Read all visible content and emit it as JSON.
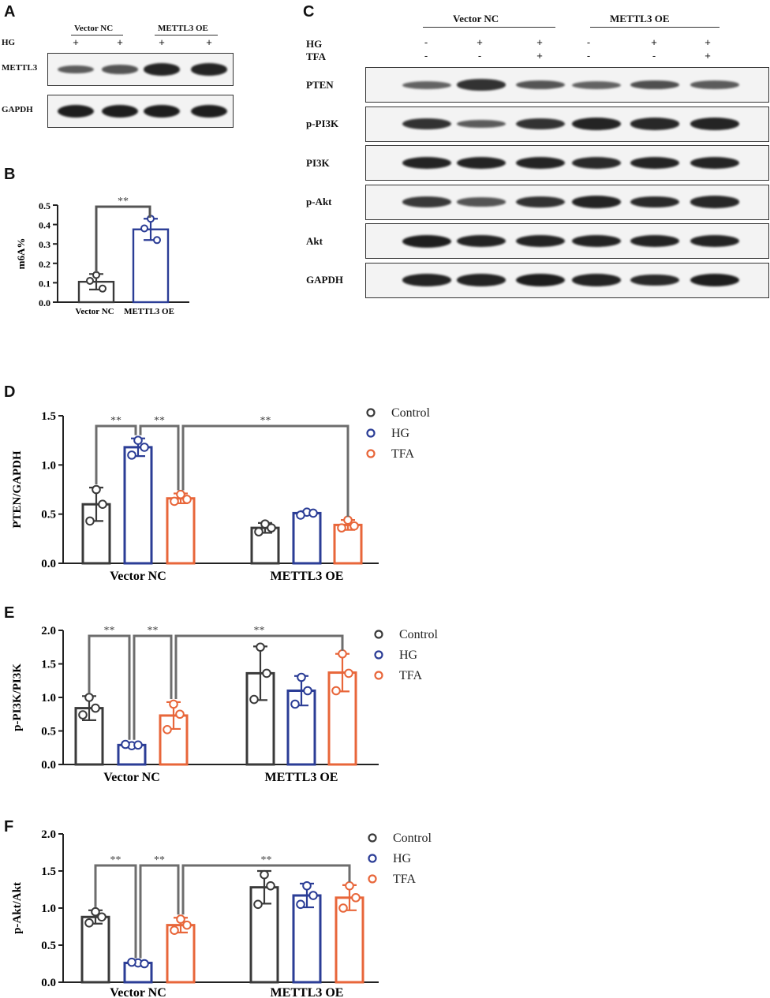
{
  "panels": {
    "A": "A",
    "B": "B",
    "C": "C",
    "D": "D",
    "E": "E",
    "F": "F"
  },
  "panel_a": {
    "groups": [
      "Vector NC",
      "METTL3 OE"
    ],
    "row_label_hg": "HG",
    "hg_signs": [
      "+",
      "+",
      "+",
      "+"
    ],
    "blots": [
      {
        "label": "METTL3",
        "intensity": [
          0.55,
          0.6,
          0.95,
          0.95
        ]
      },
      {
        "label": "GAPDH",
        "intensity": [
          1,
          1,
          1,
          1
        ]
      }
    ]
  },
  "panel_c": {
    "groups": [
      "Vector NC",
      "METTL3 OE"
    ],
    "row_labels": [
      "HG",
      "TFA"
    ],
    "hg_signs": [
      "-",
      "+",
      "+",
      "-",
      "+",
      "+"
    ],
    "tfa_signs": [
      "-",
      "-",
      "+",
      "-",
      "-",
      "+"
    ],
    "blots": [
      {
        "label": "PTEN",
        "intensity": [
          0.5,
          0.85,
          0.6,
          0.5,
          0.65,
          0.55
        ]
      },
      {
        "label": "p-PI3K",
        "intensity": [
          0.85,
          0.55,
          0.85,
          0.95,
          0.92,
          0.95
        ]
      },
      {
        "label": "PI3K",
        "intensity": [
          0.95,
          0.95,
          0.95,
          0.9,
          0.95,
          0.95
        ]
      },
      {
        "label": "p-Akt",
        "intensity": [
          0.8,
          0.6,
          0.85,
          0.95,
          0.9,
          0.92
        ]
      },
      {
        "label": "Akt",
        "intensity": [
          1,
          0.95,
          0.95,
          0.95,
          0.95,
          0.95
        ]
      },
      {
        "label": "GAPDH",
        "intensity": [
          0.95,
          0.95,
          1,
          0.95,
          0.9,
          1
        ]
      }
    ]
  },
  "chart_data": [
    {
      "panel": "B",
      "type": "bar",
      "categories": [
        "Vector NC",
        "METTL3 OE"
      ],
      "values": [
        0.105,
        0.375
      ],
      "errors": [
        0.04,
        0.055
      ],
      "points": [
        [
          0.14,
          0.11,
          0.07
        ],
        [
          0.43,
          0.38,
          0.32
        ]
      ],
      "colors": [
        "#3a3a3a",
        "#2b3d96"
      ],
      "ylabel": "m6A%",
      "ylim": [
        0,
        0.5
      ],
      "yticks": [
        "0.0",
        "0.1",
        "0.2",
        "0.3",
        "0.4",
        "0.5"
      ],
      "significance": [
        {
          "from": 0,
          "to": 1,
          "label": "**"
        }
      ]
    },
    {
      "panel": "D",
      "type": "bar",
      "groups": [
        "Vector NC",
        "METTL3 OE"
      ],
      "series": [
        {
          "name": "Control",
          "values": [
            0.6,
            0.36
          ],
          "errors": [
            0.17,
            0.05
          ],
          "points": [
            [
              0.75,
              0.43,
              0.6
            ],
            [
              0.4,
              0.32,
              0.36
            ]
          ]
        },
        {
          "name": "HG",
          "values": [
            1.18,
            0.51
          ],
          "errors": [
            0.09,
            0.02
          ],
          "points": [
            [
              1.25,
              1.1,
              1.18
            ],
            [
              0.52,
              0.49,
              0.51
            ]
          ]
        },
        {
          "name": "TFA",
          "values": [
            0.66,
            0.39
          ],
          "errors": [
            0.05,
            0.05
          ],
          "points": [
            [
              0.7,
              0.63,
              0.65
            ],
            [
              0.44,
              0.36,
              0.38
            ]
          ]
        }
      ],
      "colors": [
        "#3a3a3a",
        "#2b3d96",
        "#e8663a"
      ],
      "ylabel": "PTEN/GAPDH",
      "ylim": [
        0,
        1.5
      ],
      "yticks": [
        "0.0",
        "0.5",
        "1.0",
        "1.5"
      ],
      "legend": [
        "Control",
        "HG",
        "TFA"
      ],
      "significance": [
        {
          "label": "**"
        },
        {
          "label": "**"
        },
        {
          "label": "**"
        }
      ]
    },
    {
      "panel": "E",
      "type": "bar",
      "groups": [
        "Vector NC",
        "METTL3 OE"
      ],
      "series": [
        {
          "name": "Control",
          "values": [
            0.84,
            1.36
          ],
          "errors": [
            0.18,
            0.4
          ],
          "points": [
            [
              1.0,
              0.74,
              0.84
            ],
            [
              1.75,
              0.97,
              1.36
            ]
          ]
        },
        {
          "name": "HG",
          "values": [
            0.29,
            1.1
          ],
          "errors": [
            0.03,
            0.22
          ],
          "points": [
            [
              0.28,
              0.3,
              0.29
            ],
            [
              1.3,
              0.9,
              1.1
            ]
          ]
        },
        {
          "name": "TFA",
          "values": [
            0.73,
            1.37
          ],
          "errors": [
            0.2,
            0.28
          ],
          "points": [
            [
              0.9,
              0.52,
              0.75
            ],
            [
              1.65,
              1.1,
              1.36
            ]
          ]
        }
      ],
      "colors": [
        "#3a3a3a",
        "#2b3d96",
        "#e8663a"
      ],
      "ylabel": "p-PI3K/PI3K",
      "ylim": [
        0,
        2.0
      ],
      "yticks": [
        "0.0",
        "0.5",
        "1.0",
        "1.5",
        "2.0"
      ],
      "legend": [
        "Control",
        "HG",
        "TFA"
      ],
      "significance": [
        {
          "label": "**"
        },
        {
          "label": "**"
        },
        {
          "label": "**"
        }
      ]
    },
    {
      "panel": "F",
      "type": "bar",
      "groups": [
        "Vector NC",
        "METTL3 OE"
      ],
      "series": [
        {
          "name": "Control",
          "values": [
            0.88,
            1.28
          ],
          "errors": [
            0.09,
            0.22
          ],
          "points": [
            [
              0.95,
              0.8,
              0.88
            ],
            [
              1.45,
              1.05,
              1.3
            ]
          ]
        },
        {
          "name": "HG",
          "values": [
            0.26,
            1.17
          ],
          "errors": [
            0.02,
            0.16
          ],
          "points": [
            [
              0.26,
              0.27,
              0.25
            ],
            [
              1.3,
              1.05,
              1.17
            ]
          ]
        },
        {
          "name": "TFA",
          "values": [
            0.77,
            1.14
          ],
          "errors": [
            0.1,
            0.17
          ],
          "points": [
            [
              0.85,
              0.7,
              0.77
            ],
            [
              1.3,
              1.0,
              1.14
            ]
          ]
        }
      ],
      "colors": [
        "#3a3a3a",
        "#2b3d96",
        "#e8663a"
      ],
      "ylabel": "p-Akt/Akt",
      "ylim": [
        0,
        2.0
      ],
      "yticks": [
        "0.0",
        "0.5",
        "1.0",
        "1.5",
        "2.0"
      ],
      "legend": [
        "Control",
        "HG",
        "TFA"
      ],
      "significance": [
        {
          "label": "**"
        },
        {
          "label": "**"
        },
        {
          "label": "**"
        }
      ]
    }
  ]
}
